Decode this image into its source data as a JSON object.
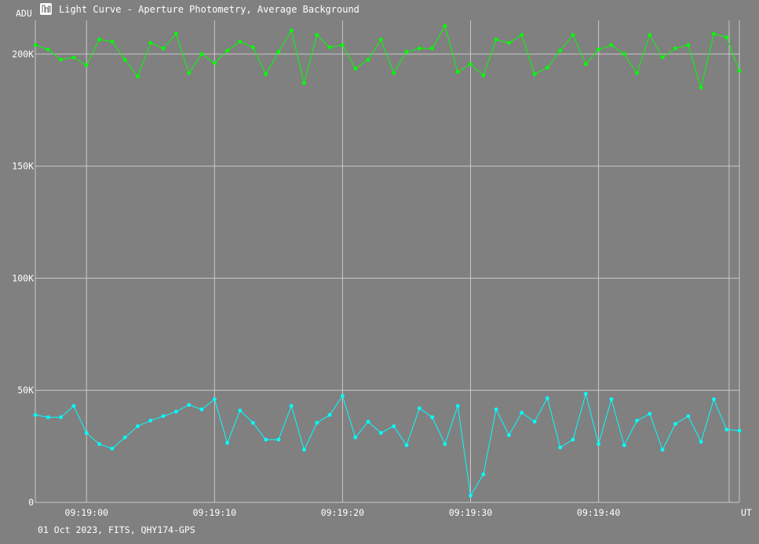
{
  "window": {
    "title": "Light Curve - Aperture Photometry, Average Background",
    "app_icon": "chart-app-icon"
  },
  "footer": {
    "info": "01 Oct 2023, FITS, QHY174-GPS"
  },
  "chart_data": {
    "type": "line",
    "title": "Light Curve - Aperture Photometry, Average Background",
    "ylabel": "ADU",
    "xlabel": "UT",
    "grid": true,
    "ylim": [
      0,
      215000
    ],
    "y_ticks": [
      {
        "value": 0,
        "label": "0"
      },
      {
        "value": 50000,
        "label": "50K"
      },
      {
        "value": 100000,
        "label": "100K"
      },
      {
        "value": 150000,
        "label": "150K"
      },
      {
        "value": 200000,
        "label": "200K"
      }
    ],
    "xlim": [
      -4.0,
      51.0
    ],
    "x_ticks": [
      {
        "value": 0,
        "label": "09:19:00"
      },
      {
        "value": 10,
        "label": "09:19:10"
      },
      {
        "value": 20,
        "label": "09:19:20"
      },
      {
        "value": 30,
        "label": "09:19:30"
      },
      {
        "value": 40,
        "label": "09:19:40"
      }
    ],
    "x_extra_gridlines": [
      50.2
    ],
    "series": [
      {
        "color": "#00ff00",
        "x": [
          -4,
          -3,
          -2,
          -1,
          0,
          1,
          2,
          3,
          4,
          5,
          6,
          7,
          8,
          9,
          10,
          11,
          12,
          13,
          14,
          15,
          16,
          17,
          18,
          19,
          20,
          21,
          22,
          23,
          24,
          25,
          26,
          27,
          28,
          29,
          30,
          31,
          32,
          33,
          34,
          35,
          36,
          37,
          38,
          39,
          40,
          41,
          42,
          43,
          44,
          45,
          46,
          47,
          48,
          49,
          50,
          51
        ],
        "values": [
          204000,
          202000,
          197500,
          198500,
          195000,
          206500,
          205500,
          197500,
          190000,
          205000,
          202500,
          209000,
          191500,
          200000,
          196000,
          201500,
          205500,
          203000,
          191000,
          201000,
          210500,
          187000,
          208500,
          203000,
          204000,
          193500,
          197500,
          206500,
          191500,
          201000,
          202500,
          202500,
          212500,
          192000,
          195500,
          190500,
          206500,
          205000,
          208500,
          191000,
          194000,
          201500,
          208500,
          195500,
          202000,
          204000,
          200000,
          191500,
          208500,
          198500,
          202500,
          204000,
          185000,
          209000,
          207500,
          192500
        ]
      },
      {
        "color": "#00ffff",
        "x": [
          -4,
          -3,
          -2,
          -1,
          0,
          1,
          2,
          3,
          4,
          5,
          6,
          7,
          8,
          9,
          10,
          11,
          12,
          13,
          14,
          15,
          16,
          17,
          18,
          19,
          20,
          21,
          22,
          23,
          24,
          25,
          26,
          27,
          28,
          29,
          30,
          31,
          32,
          33,
          34,
          35,
          36,
          37,
          38,
          39,
          40,
          41,
          42,
          43,
          44,
          45,
          46,
          47,
          48,
          49,
          50,
          51
        ],
        "values": [
          39000,
          38000,
          38000,
          43000,
          31000,
          26000,
          24000,
          29000,
          34000,
          36500,
          38500,
          40500,
          43500,
          41500,
          46000,
          26500,
          41000,
          35500,
          28000,
          28000,
          43000,
          23500,
          35500,
          39000,
          47500,
          29000,
          36000,
          31000,
          34000,
          25500,
          42000,
          38000,
          26000,
          43000,
          3000,
          12500,
          41500,
          30000,
          40000,
          36000,
          46500,
          24500,
          28000,
          48500,
          26000,
          46000,
          25500,
          36500,
          39500,
          23500,
          35000,
          38500,
          27000,
          46000,
          32500,
          32000
        ]
      }
    ]
  }
}
